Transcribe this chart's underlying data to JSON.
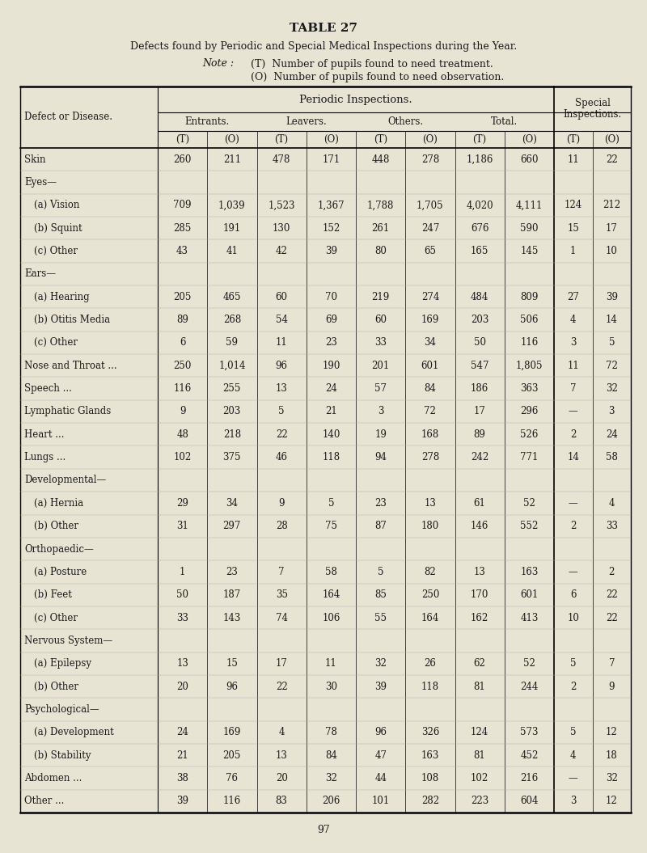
{
  "title": "TABLE 27",
  "subtitle": "Defects found by Periodic and Special Medical Inspections during the Year.",
  "note_label": "Note :",
  "note_line1": "(T)  Number of pupils found to need treatment.",
  "note_line2": "(O)  Number of pupils found to need observation.",
  "page_number": "97",
  "bg_color": "#e8e4d4",
  "text_color": "#1a1a1a",
  "col_header_periodic": "Periodic Inspections.",
  "col_header_special_line1": "Special",
  "col_header_special_line2": "Inspections.",
  "col_sub_headers": [
    "Entrants.",
    "Leavers.",
    "Others.",
    "Total."
  ],
  "defect_label": "Defect or Disease.",
  "rows": [
    {
      "label": "Skin",
      "indent": 0,
      "group_header": false,
      "data": [
        "260",
        "211",
        "478",
        "171",
        "448",
        "278",
        "1,186",
        "660",
        "11",
        "22"
      ]
    },
    {
      "label": "Eyes—",
      "indent": 0,
      "group_header": true,
      "data": [
        "",
        "",
        "",
        "",
        "",
        "",
        "",
        "",
        "",
        ""
      ]
    },
    {
      "label": "(a) Vision",
      "indent": 1,
      "group_header": false,
      "data": [
        "709",
        "1,039",
        "1,523",
        "1,367",
        "1,788",
        "1,705",
        "4,020",
        "4,111",
        "124",
        "212"
      ]
    },
    {
      "label": "(b) Squint",
      "indent": 1,
      "group_header": false,
      "data": [
        "285",
        "191",
        "130",
        "152",
        "261",
        "247",
        "676",
        "590",
        "15",
        "17"
      ]
    },
    {
      "label": "(c) Other",
      "indent": 1,
      "group_header": false,
      "data": [
        "43",
        "41",
        "42",
        "39",
        "80",
        "65",
        "165",
        "145",
        "1",
        "10"
      ]
    },
    {
      "label": "Ears—",
      "indent": 0,
      "group_header": true,
      "data": [
        "",
        "",
        "",
        "",
        "",
        "",
        "",
        "",
        "",
        ""
      ]
    },
    {
      "label": "(a) Hearing",
      "indent": 1,
      "group_header": false,
      "data": [
        "205",
        "465",
        "60",
        "70",
        "219",
        "274",
        "484",
        "809",
        "27",
        "39"
      ]
    },
    {
      "label": "(b) Otitis Media",
      "indent": 1,
      "group_header": false,
      "data": [
        "89",
        "268",
        "54",
        "69",
        "60",
        "169",
        "203",
        "506",
        "4",
        "14"
      ]
    },
    {
      "label": "(c) Other",
      "indent": 1,
      "group_header": false,
      "data": [
        "6",
        "59",
        "11",
        "23",
        "33",
        "34",
        "50",
        "116",
        "3",
        "5"
      ]
    },
    {
      "label": "Nose and Throat ...",
      "indent": 0,
      "group_header": false,
      "data": [
        "250",
        "1,014",
        "96",
        "190",
        "201",
        "601",
        "547",
        "1,805",
        "11",
        "72"
      ]
    },
    {
      "label": "Speech ...",
      "indent": 0,
      "group_header": false,
      "data": [
        "116",
        "255",
        "13",
        "24",
        "57",
        "84",
        "186",
        "363",
        "7",
        "32"
      ]
    },
    {
      "label": "Lymphatic Glands",
      "indent": 0,
      "group_header": false,
      "data": [
        "9",
        "203",
        "5",
        "21",
        "3",
        "72",
        "17",
        "296",
        "—",
        "3"
      ]
    },
    {
      "label": "Heart ...",
      "indent": 0,
      "group_header": false,
      "data": [
        "48",
        "218",
        "22",
        "140",
        "19",
        "168",
        "89",
        "526",
        "2",
        "24"
      ]
    },
    {
      "label": "Lungs ...",
      "indent": 0,
      "group_header": false,
      "data": [
        "102",
        "375",
        "46",
        "118",
        "94",
        "278",
        "242",
        "771",
        "14",
        "58"
      ]
    },
    {
      "label": "Developmental—",
      "indent": 0,
      "group_header": true,
      "data": [
        "",
        "",
        "",
        "",
        "",
        "",
        "",
        "",
        "",
        ""
      ]
    },
    {
      "label": "(a) Hernia",
      "indent": 1,
      "group_header": false,
      "data": [
        "29",
        "34",
        "9",
        "5",
        "23",
        "13",
        "61",
        "52",
        "—",
        "4"
      ]
    },
    {
      "label": "(b) Other",
      "indent": 1,
      "group_header": false,
      "data": [
        "31",
        "297",
        "28",
        "75",
        "87",
        "180",
        "146",
        "552",
        "2",
        "33"
      ]
    },
    {
      "label": "Orthopaedic—",
      "indent": 0,
      "group_header": true,
      "data": [
        "",
        "",
        "",
        "",
        "",
        "",
        "",
        "",
        "",
        ""
      ]
    },
    {
      "label": "(a) Posture",
      "indent": 1,
      "group_header": false,
      "data": [
        "1",
        "23",
        "7",
        "58",
        "5",
        "82",
        "13",
        "163",
        "—",
        "2"
      ]
    },
    {
      "label": "(b) Feet",
      "indent": 1,
      "group_header": false,
      "data": [
        "50",
        "187",
        "35",
        "164",
        "85",
        "250",
        "170",
        "601",
        "6",
        "22"
      ]
    },
    {
      "label": "(c) Other",
      "indent": 1,
      "group_header": false,
      "data": [
        "33",
        "143",
        "74",
        "106",
        "55",
        "164",
        "162",
        "413",
        "10",
        "22"
      ]
    },
    {
      "label": "Nervous System—",
      "indent": 0,
      "group_header": true,
      "data": [
        "",
        "",
        "",
        "",
        "",
        "",
        "",
        "",
        "",
        ""
      ]
    },
    {
      "label": "(a) Epilepsy",
      "indent": 1,
      "group_header": false,
      "data": [
        "13",
        "15",
        "17",
        "11",
        "32",
        "26",
        "62",
        "52",
        "5",
        "7"
      ]
    },
    {
      "label": "(b) Other",
      "indent": 1,
      "group_header": false,
      "data": [
        "20",
        "96",
        "22",
        "30",
        "39",
        "118",
        "81",
        "244",
        "2",
        "9"
      ]
    },
    {
      "label": "Psychological—",
      "indent": 0,
      "group_header": true,
      "data": [
        "",
        "",
        "",
        "",
        "",
        "",
        "",
        "",
        "",
        ""
      ]
    },
    {
      "label": "(a) Development",
      "indent": 1,
      "group_header": false,
      "data": [
        "24",
        "169",
        "4",
        "78",
        "96",
        "326",
        "124",
        "573",
        "5",
        "12"
      ]
    },
    {
      "label": "(b) Stability",
      "indent": 1,
      "group_header": false,
      "data": [
        "21",
        "205",
        "13",
        "84",
        "47",
        "163",
        "81",
        "452",
        "4",
        "18"
      ]
    },
    {
      "label": "Abdomen ...",
      "indent": 0,
      "group_header": false,
      "data": [
        "38",
        "76",
        "20",
        "32",
        "44",
        "108",
        "102",
        "216",
        "—",
        "32"
      ]
    },
    {
      "label": "Other ...",
      "indent": 0,
      "group_header": false,
      "data": [
        "39",
        "116",
        "83",
        "206",
        "101",
        "282",
        "223",
        "604",
        "3",
        "12"
      ]
    }
  ]
}
